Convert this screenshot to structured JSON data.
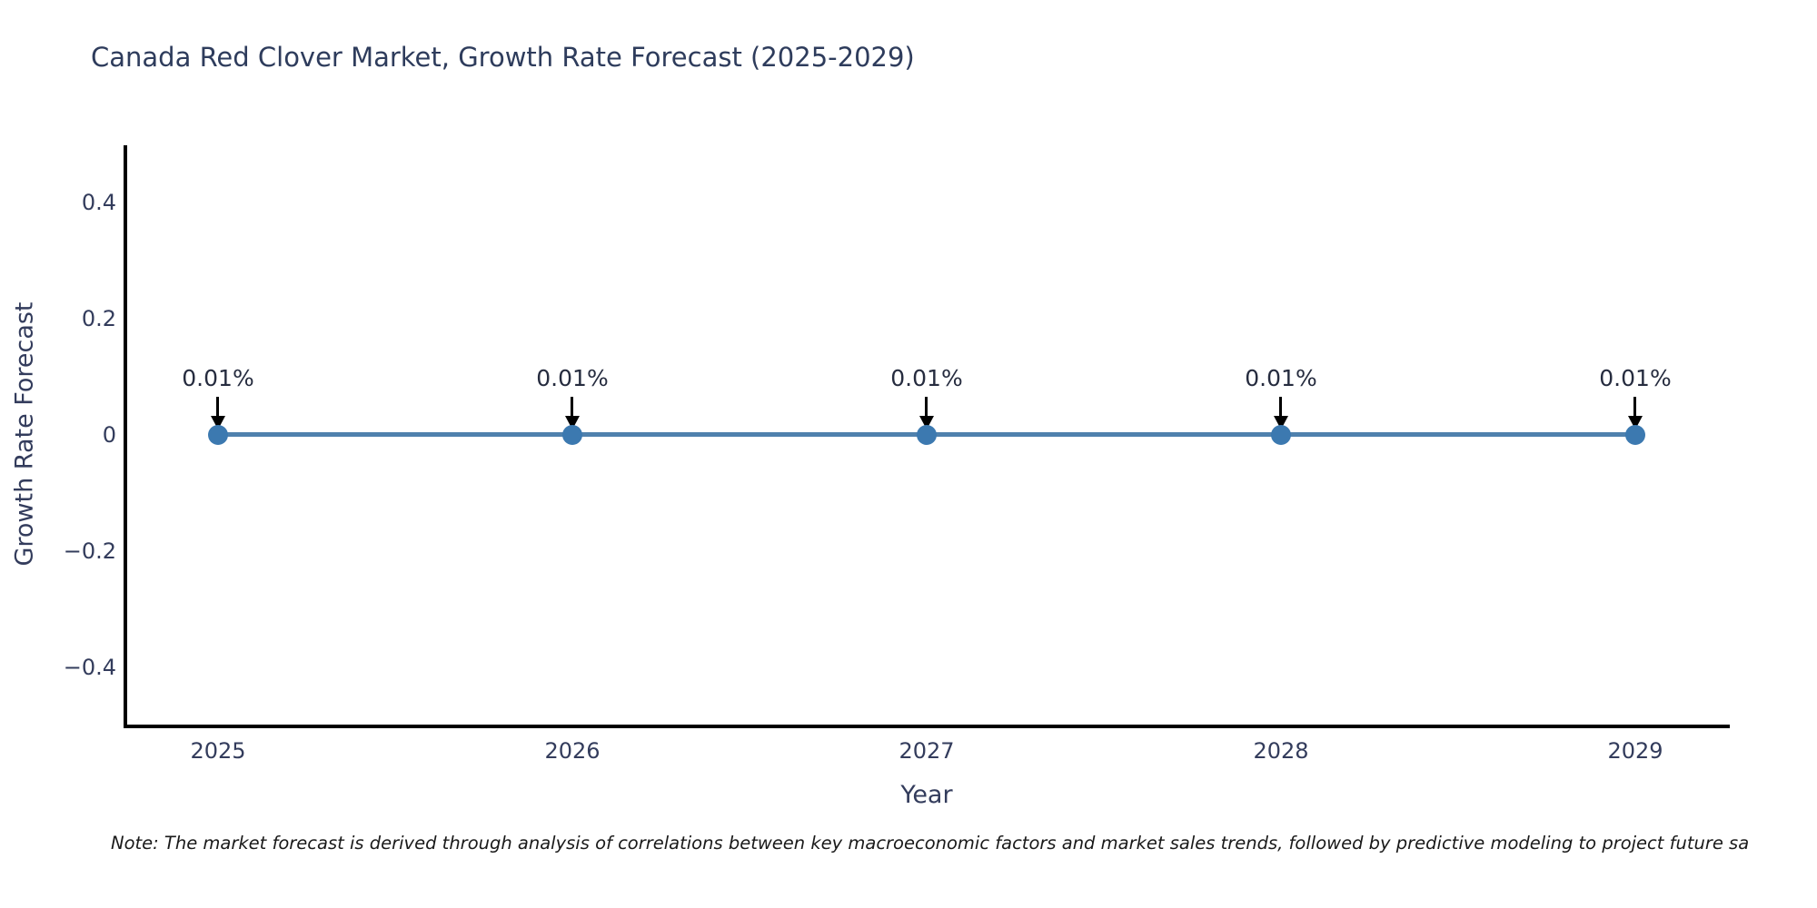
{
  "figure": {
    "title": "Canada Red Clover Market, Growth Rate Forecast (2025-2029)",
    "note": "Note: The market forecast is derived through analysis of correlations between key macroeconomic factors and market sales trends, followed by predictive modeling to project future sa",
    "x_axis": {
      "label": "Year",
      "tick_labels": [
        "2025",
        "2026",
        "2027",
        "2028",
        "2029"
      ]
    },
    "y_axis": {
      "label": "Growth Rate Forecast",
      "tick_labels": [
        "0.4",
        "0.2",
        "0",
        "−0.2",
        "−0.4"
      ]
    },
    "point_labels": [
      "0.01%",
      "0.01%",
      "0.01%",
      "0.01%",
      "0.01%"
    ]
  },
  "chart_data": {
    "type": "line",
    "title": "Canada Red Clover Market, Growth Rate Forecast (2025-2029)",
    "xlabel": "Year",
    "ylabel": "Growth Rate Forecast",
    "x": [
      2025,
      2026,
      2027,
      2028,
      2029
    ],
    "series": [
      {
        "name": "Growth Rate Forecast",
        "values": [
          0.01,
          0.01,
          0.01,
          0.01,
          0.01
        ]
      }
    ],
    "data_labels": [
      "0.01%",
      "0.01%",
      "0.01%",
      "0.01%",
      "0.01%"
    ],
    "ylim": [
      -0.5,
      0.5
    ],
    "yticks": [
      0.4,
      0.2,
      0,
      -0.2,
      -0.4
    ],
    "xticks": [
      2025,
      2026,
      2027,
      2028,
      2029
    ],
    "grid": false,
    "legend_position": "none",
    "annotation_style": "value label with downward black arrow above each marker"
  },
  "colors": {
    "background": "#ffffff",
    "line": "#4f81ad",
    "marker": "#3c79b0",
    "axis_spine": "#000000",
    "axis_text": "#333c5c",
    "title_text": "#2e3c5c",
    "annotation_text": "#262c3f",
    "note_text": "#1a1a1a"
  }
}
